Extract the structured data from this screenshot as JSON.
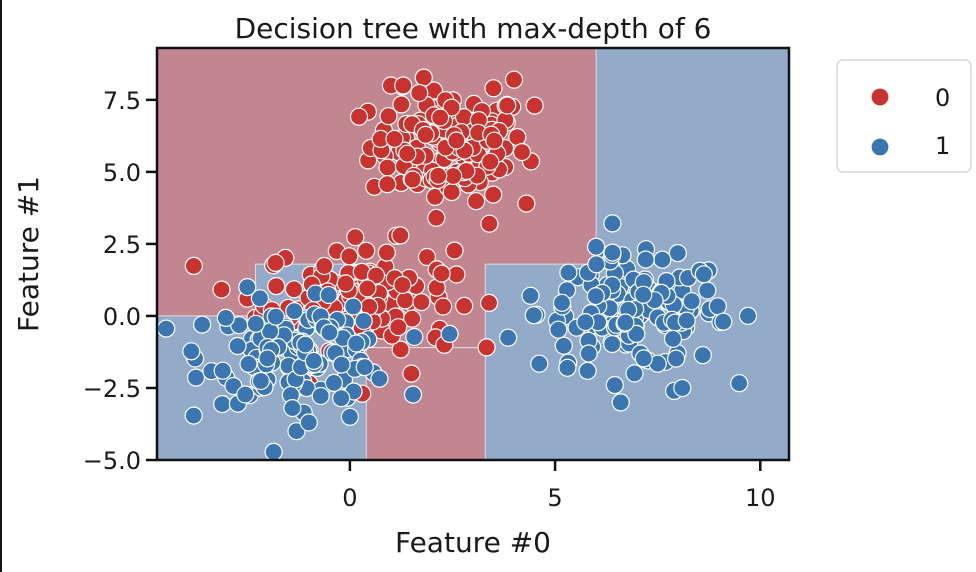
{
  "colors": {
    "class0_point": "#c8332f",
    "class1_point": "#3b76b0",
    "class0_region": "#c28690",
    "class1_region": "#93aac9",
    "point_edge": "#ffffff",
    "axis": "#111111"
  },
  "chart_data": {
    "type": "scatter",
    "title": "Decision tree with max-depth of 6",
    "xlabel": "Feature #0",
    "ylabel": "Feature #1",
    "xlim": [
      -4.7,
      10.7
    ],
    "ylim": [
      -5.0,
      9.3
    ],
    "xticks": [
      0,
      5,
      10
    ],
    "yticks": [
      -5.0,
      -2.5,
      0.0,
      2.5,
      5.0,
      7.5
    ],
    "xtick_labels": [
      "0",
      "5",
      "10"
    ],
    "ytick_labels": [
      "−5.0",
      "−2.5",
      "0.0",
      "2.5",
      "5.0",
      "7.5"
    ],
    "legend": {
      "placement": "outside-right",
      "entries": [
        "0",
        "1"
      ]
    },
    "decision_regions": [
      {
        "class": "0",
        "polygon": [
          [
            -4.7,
            0.0
          ],
          [
            -2.3,
            0.0
          ],
          [
            -2.3,
            1.8
          ],
          [
            0.4,
            1.8
          ],
          [
            0.4,
            -1.1
          ],
          [
            3.3,
            -1.1
          ],
          [
            3.3,
            -0.7
          ],
          [
            3.3,
            1.8
          ],
          [
            6.0,
            1.8
          ],
          [
            6.0,
            9.3
          ],
          [
            -4.7,
            9.3
          ]
        ]
      },
      {
        "class": "0",
        "polygon": [
          [
            0.4,
            -1.1
          ],
          [
            3.3,
            -1.1
          ],
          [
            3.3,
            -5.0
          ],
          [
            0.4,
            -5.0
          ]
        ]
      }
    ],
    "background_class": "1",
    "series": [
      {
        "name": "0",
        "clusters": [
          {
            "center": [
              2.4,
              5.9
            ],
            "spread": [
              0.95,
              0.95
            ],
            "count": 150
          },
          {
            "center": [
              0.2,
              0.7
            ],
            "spread": [
              1.15,
              0.9
            ],
            "count": 130
          }
        ],
        "x": [
          1.0,
          1.3,
          3.5,
          4.0,
          4.5,
          4.3,
          3.4,
          -2.5,
          0.3,
          0.9,
          1.5,
          2.3,
          -0.9,
          -1.9
        ],
        "y": [
          8.0,
          8.0,
          7.9,
          8.2,
          7.3,
          3.9,
          3.2,
          0.6,
          -2.7,
          2.2,
          -2.0,
          -1.0,
          0.2,
          0.2
        ]
      },
      {
        "name": "1",
        "clusters": [
          {
            "center": [
              6.9,
              0.1
            ],
            "spread": [
              1.15,
              0.95
            ],
            "count": 150
          },
          {
            "center": [
              -1.2,
              -1.3
            ],
            "spread": [
              1.15,
              0.85
            ],
            "count": 130
          }
        ],
        "x": [
          6.0,
          6.4,
          6.6,
          7.9,
          8.1,
          9.7,
          9.1,
          4.4,
          5.3,
          -3.6,
          -3.1,
          -1.4,
          -1.3,
          -2.5,
          -1.0,
          0.0
        ],
        "y": [
          2.4,
          2.2,
          -3.0,
          -2.6,
          -2.5,
          0.0,
          -0.2,
          0.7,
          -1.8,
          -0.3,
          -1.9,
          -3.2,
          -4.0,
          1.0,
          -3.7,
          -3.5
        ]
      }
    ]
  }
}
